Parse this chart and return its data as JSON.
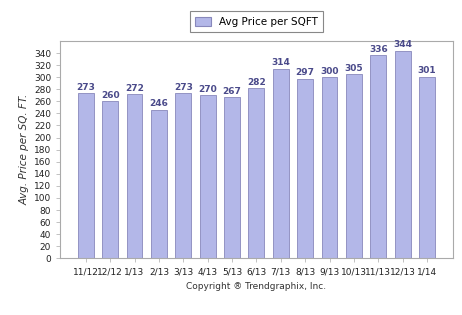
{
  "categories": [
    "11/12",
    "12/12",
    "1/13",
    "2/13",
    "3/13",
    "4/13",
    "5/13",
    "6/13",
    "7/13",
    "8/13",
    "9/13",
    "10/13",
    "11/13",
    "12/13",
    "1/14"
  ],
  "values": [
    273,
    260,
    272,
    246,
    273,
    270,
    267,
    282,
    314,
    297,
    300,
    305,
    336,
    344,
    301
  ],
  "bar_color": "#b3b7e8",
  "bar_edge_color": "#8888bb",
  "ylabel": "Avg. Price per SQ. FT.",
  "xlabel": "Copyright ® Trendgraphix, Inc.",
  "legend_label": "Avg Price per SQFT",
  "ylim": [
    0,
    360
  ],
  "yticks": [
    0,
    20,
    40,
    60,
    80,
    100,
    120,
    140,
    160,
    180,
    200,
    220,
    240,
    260,
    280,
    300,
    320,
    340
  ],
  "background_color": "#ffffff",
  "plot_bg_color": "#ffffff",
  "axis_label_fontsize": 7.5,
  "tick_fontsize": 6.5,
  "legend_fontsize": 7.5,
  "annotation_fontsize": 6.5,
  "annotation_color": "#4a4a8a"
}
